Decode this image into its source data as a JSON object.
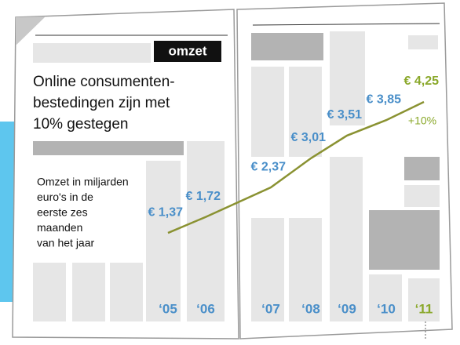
{
  "chart_data": {
    "type": "line",
    "title": "omzet",
    "subtitle": [
      "Online consumenten-",
      "bestedingen zijn met",
      "10% gestegen"
    ],
    "note": [
      "Omzet in miljarden",
      "euro's in de",
      "eerste zes",
      "maanden",
      "van het jaar"
    ],
    "categories": [
      "‘05",
      "‘06",
      "‘07",
      "‘08",
      "‘09",
      "‘10",
      "‘11"
    ],
    "category_colors": [
      "#4a8fc9",
      "#4a8fc9",
      "#4a8fc9",
      "#4a8fc9",
      "#4a8fc9",
      "#4a8fc9",
      "#8aa82a"
    ],
    "series": [
      {
        "color": "#8a9232",
        "values": [
          1.37,
          1.72,
          2.37,
          3.01,
          3.51,
          3.85,
          4.25
        ],
        "value_labels": [
          "€ 1,37",
          "€ 1,72",
          "€ 2,37",
          "€ 3,01",
          "€ 3,51",
          "€ 3,85",
          "€ 4,25"
        ]
      }
    ],
    "annotation": {
      "text": "+10%",
      "color": "#8aa82a"
    }
  }
}
